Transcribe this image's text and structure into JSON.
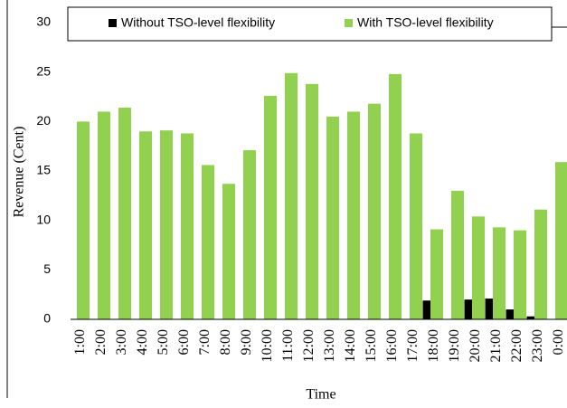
{
  "chart_data": {
    "type": "bar",
    "x_label": "Time",
    "y_label": "Revenue (Cent)",
    "categories": [
      "1:00",
      "2:00",
      "3:00",
      "4:00",
      "5:00",
      "6:00",
      "7:00",
      "8:00",
      "9:00",
      "10:00",
      "11:00",
      "12:00",
      "13:00",
      "14:00",
      "15:00",
      "16:00",
      "17:00",
      "18:00",
      "19:00",
      "20:00",
      "21:00",
      "22:00",
      "23:00",
      "0:00"
    ],
    "series": [
      {
        "name": "Without TSO-level flexibility",
        "color": "#000000",
        "values": [
          0,
          0,
          0,
          0,
          0,
          0,
          0,
          0,
          0,
          0,
          0,
          0,
          0,
          0,
          0,
          0,
          0,
          1.9,
          0,
          2.0,
          2.1,
          1.0,
          0.3,
          0
        ]
      },
      {
        "name": "With TSO-level flexibility",
        "color": "#92d050",
        "values": [
          20.0,
          21.0,
          21.4,
          19.0,
          19.1,
          18.8,
          15.6,
          13.7,
          17.1,
          22.6,
          24.9,
          23.8,
          20.5,
          21.0,
          21.8,
          24.8,
          18.8,
          9.1,
          13.0,
          10.4,
          9.3,
          9.0,
          11.1,
          15.9
        ]
      }
    ],
    "ylim": [
      0,
      30
    ],
    "yticks": [
      0,
      5,
      10,
      15,
      20,
      25,
      30
    ],
    "grid": false,
    "legend": "top"
  }
}
